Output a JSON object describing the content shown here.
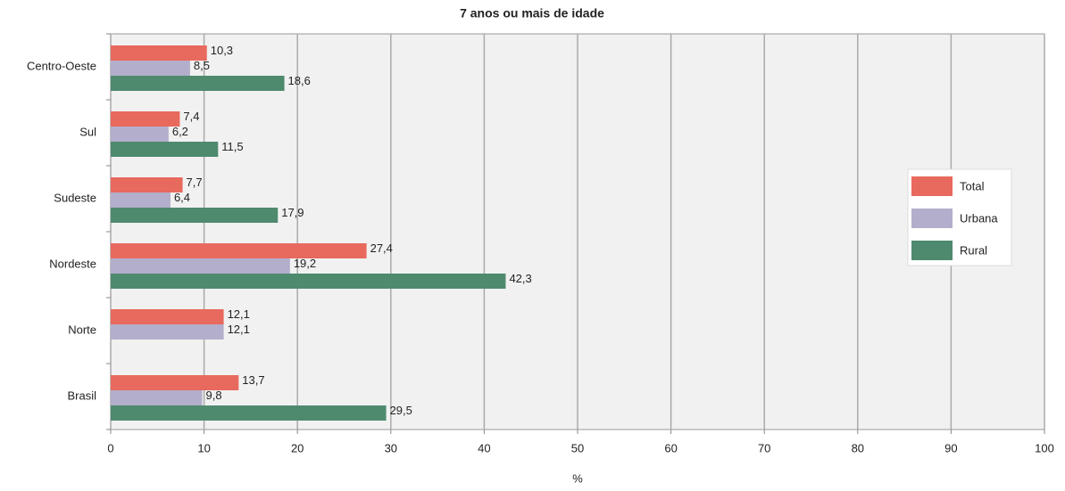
{
  "chart_data": {
    "type": "bar",
    "orientation": "horizontal",
    "title": "7 anos ou mais de idade",
    "xlabel": "%",
    "categories": [
      "Centro-Oeste",
      "Sul",
      "Sudeste",
      "Nordeste",
      "Norte",
      "Brasil"
    ],
    "series": [
      {
        "name": "Total",
        "color": "#e8695d",
        "values": [
          10.3,
          7.4,
          7.7,
          27.4,
          12.1,
          13.7
        ],
        "value_labels": [
          "10,3",
          "7,4",
          "7,7",
          "27,4",
          "12,1",
          "13,7"
        ]
      },
      {
        "name": "Urbana",
        "color": "#b3aecb",
        "values": [
          8.5,
          6.2,
          6.4,
          19.2,
          12.1,
          9.8
        ],
        "value_labels": [
          "8,5",
          "6,2",
          "6,4",
          "19,2",
          "12,1",
          "9,8"
        ]
      },
      {
        "name": "Rural",
        "color": "#4e8a6e",
        "values": [
          18.6,
          11.5,
          17.9,
          42.3,
          null,
          29.5
        ],
        "value_labels": [
          "18,6",
          "11,5",
          "17,9",
          "42,3",
          null,
          "29,5"
        ]
      }
    ],
    "xlim": [
      0,
      100
    ],
    "xticks": [
      0,
      10,
      20,
      30,
      40,
      50,
      60,
      70,
      80,
      90,
      100
    ],
    "grid": true,
    "legend": "right"
  }
}
